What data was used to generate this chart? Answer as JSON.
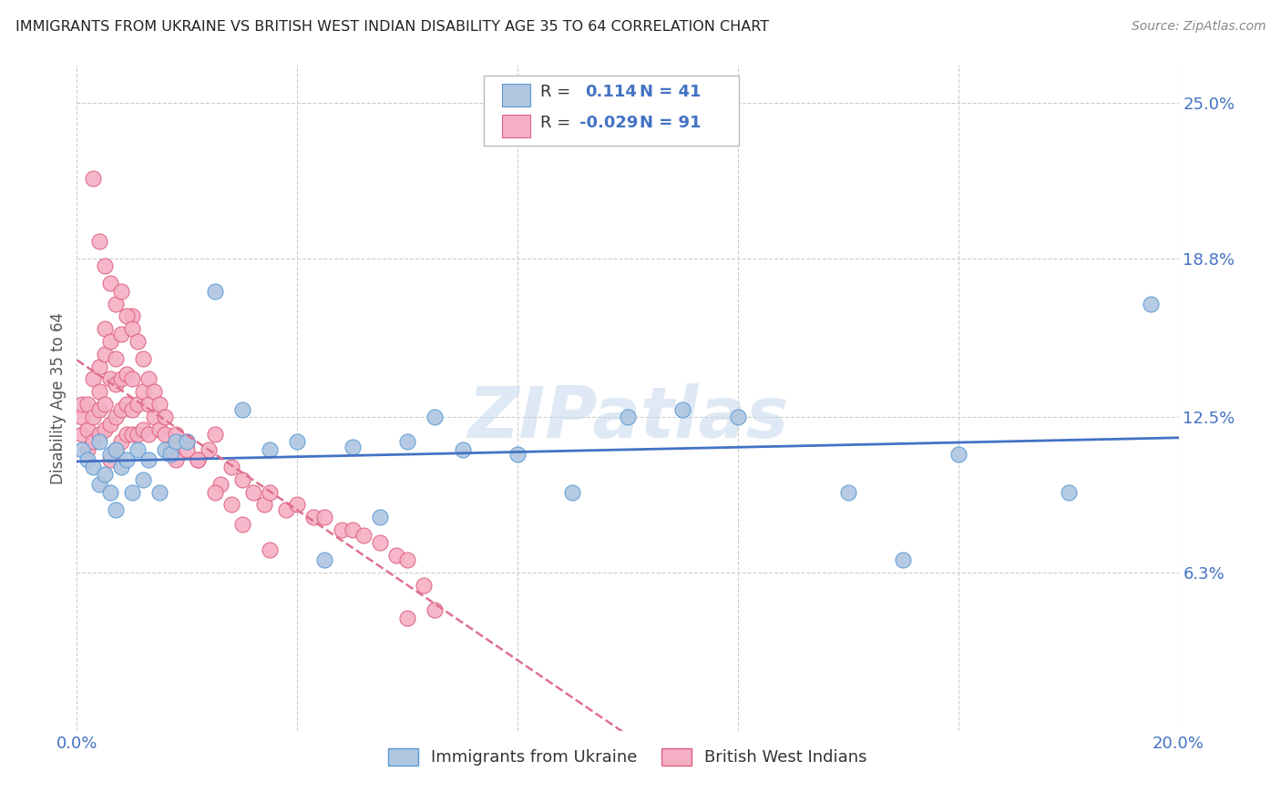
{
  "title": "IMMIGRANTS FROM UKRAINE VS BRITISH WEST INDIAN DISABILITY AGE 35 TO 64 CORRELATION CHART",
  "source": "Source: ZipAtlas.com",
  "ylabel": "Disability Age 35 to 64",
  "xlim": [
    0,
    0.2
  ],
  "ylim": [
    0,
    0.265
  ],
  "ytick_positions": [
    0.063,
    0.125,
    0.188,
    0.25
  ],
  "ytick_labels": [
    "6.3%",
    "12.5%",
    "18.8%",
    "25.0%"
  ],
  "ukraine_R": 0.114,
  "ukraine_N": 41,
  "bwi_R": -0.029,
  "bwi_N": 91,
  "ukraine_color": "#aec6e0",
  "bwi_color": "#f4afc4",
  "ukraine_edge_color": "#5b9bd5",
  "bwi_edge_color": "#e06080",
  "ukraine_line_color": "#4472c4",
  "bwi_line_color": "#e07090",
  "watermark": "ZIPatlas",
  "ukraine_x": [
    0.001,
    0.002,
    0.003,
    0.004,
    0.004,
    0.005,
    0.006,
    0.006,
    0.007,
    0.007,
    0.008,
    0.009,
    0.01,
    0.011,
    0.012,
    0.013,
    0.015,
    0.016,
    0.017,
    0.018,
    0.02,
    0.025,
    0.03,
    0.035,
    0.04,
    0.045,
    0.05,
    0.055,
    0.06,
    0.065,
    0.07,
    0.08,
    0.09,
    0.1,
    0.11,
    0.12,
    0.14,
    0.15,
    0.16,
    0.18,
    0.195
  ],
  "ukraine_y": [
    0.112,
    0.108,
    0.105,
    0.115,
    0.098,
    0.102,
    0.11,
    0.095,
    0.112,
    0.088,
    0.105,
    0.108,
    0.095,
    0.112,
    0.1,
    0.108,
    0.095,
    0.112,
    0.11,
    0.115,
    0.115,
    0.175,
    0.128,
    0.112,
    0.115,
    0.068,
    0.113,
    0.085,
    0.115,
    0.125,
    0.112,
    0.11,
    0.095,
    0.125,
    0.128,
    0.125,
    0.095,
    0.068,
    0.11,
    0.095,
    0.17
  ],
  "bwi_x": [
    0.001,
    0.001,
    0.001,
    0.002,
    0.002,
    0.002,
    0.003,
    0.003,
    0.003,
    0.004,
    0.004,
    0.004,
    0.004,
    0.005,
    0.005,
    0.005,
    0.005,
    0.006,
    0.006,
    0.006,
    0.006,
    0.007,
    0.007,
    0.007,
    0.007,
    0.008,
    0.008,
    0.008,
    0.008,
    0.009,
    0.009,
    0.009,
    0.01,
    0.01,
    0.01,
    0.01,
    0.011,
    0.011,
    0.012,
    0.012,
    0.013,
    0.013,
    0.014,
    0.015,
    0.016,
    0.017,
    0.018,
    0.02,
    0.022,
    0.024,
    0.025,
    0.026,
    0.028,
    0.03,
    0.032,
    0.034,
    0.035,
    0.038,
    0.04,
    0.043,
    0.045,
    0.048,
    0.05,
    0.052,
    0.055,
    0.058,
    0.06,
    0.063,
    0.065,
    0.003,
    0.004,
    0.005,
    0.006,
    0.007,
    0.008,
    0.009,
    0.01,
    0.011,
    0.012,
    0.013,
    0.014,
    0.015,
    0.016,
    0.018,
    0.02,
    0.022,
    0.025,
    0.028,
    0.03,
    0.035,
    0.06
  ],
  "bwi_y": [
    0.118,
    0.125,
    0.13,
    0.112,
    0.12,
    0.13,
    0.115,
    0.125,
    0.14,
    0.118,
    0.128,
    0.135,
    0.145,
    0.12,
    0.13,
    0.15,
    0.16,
    0.108,
    0.122,
    0.14,
    0.155,
    0.112,
    0.125,
    0.138,
    0.148,
    0.115,
    0.128,
    0.14,
    0.158,
    0.118,
    0.13,
    0.142,
    0.118,
    0.128,
    0.14,
    0.165,
    0.118,
    0.13,
    0.12,
    0.135,
    0.118,
    0.13,
    0.125,
    0.12,
    0.118,
    0.112,
    0.108,
    0.115,
    0.108,
    0.112,
    0.118,
    0.098,
    0.105,
    0.1,
    0.095,
    0.09,
    0.095,
    0.088,
    0.09,
    0.085,
    0.085,
    0.08,
    0.08,
    0.078,
    0.075,
    0.07,
    0.068,
    0.058,
    0.048,
    0.22,
    0.195,
    0.185,
    0.178,
    0.17,
    0.175,
    0.165,
    0.16,
    0.155,
    0.148,
    0.14,
    0.135,
    0.13,
    0.125,
    0.118,
    0.112,
    0.108,
    0.095,
    0.09,
    0.082,
    0.072,
    0.045
  ]
}
